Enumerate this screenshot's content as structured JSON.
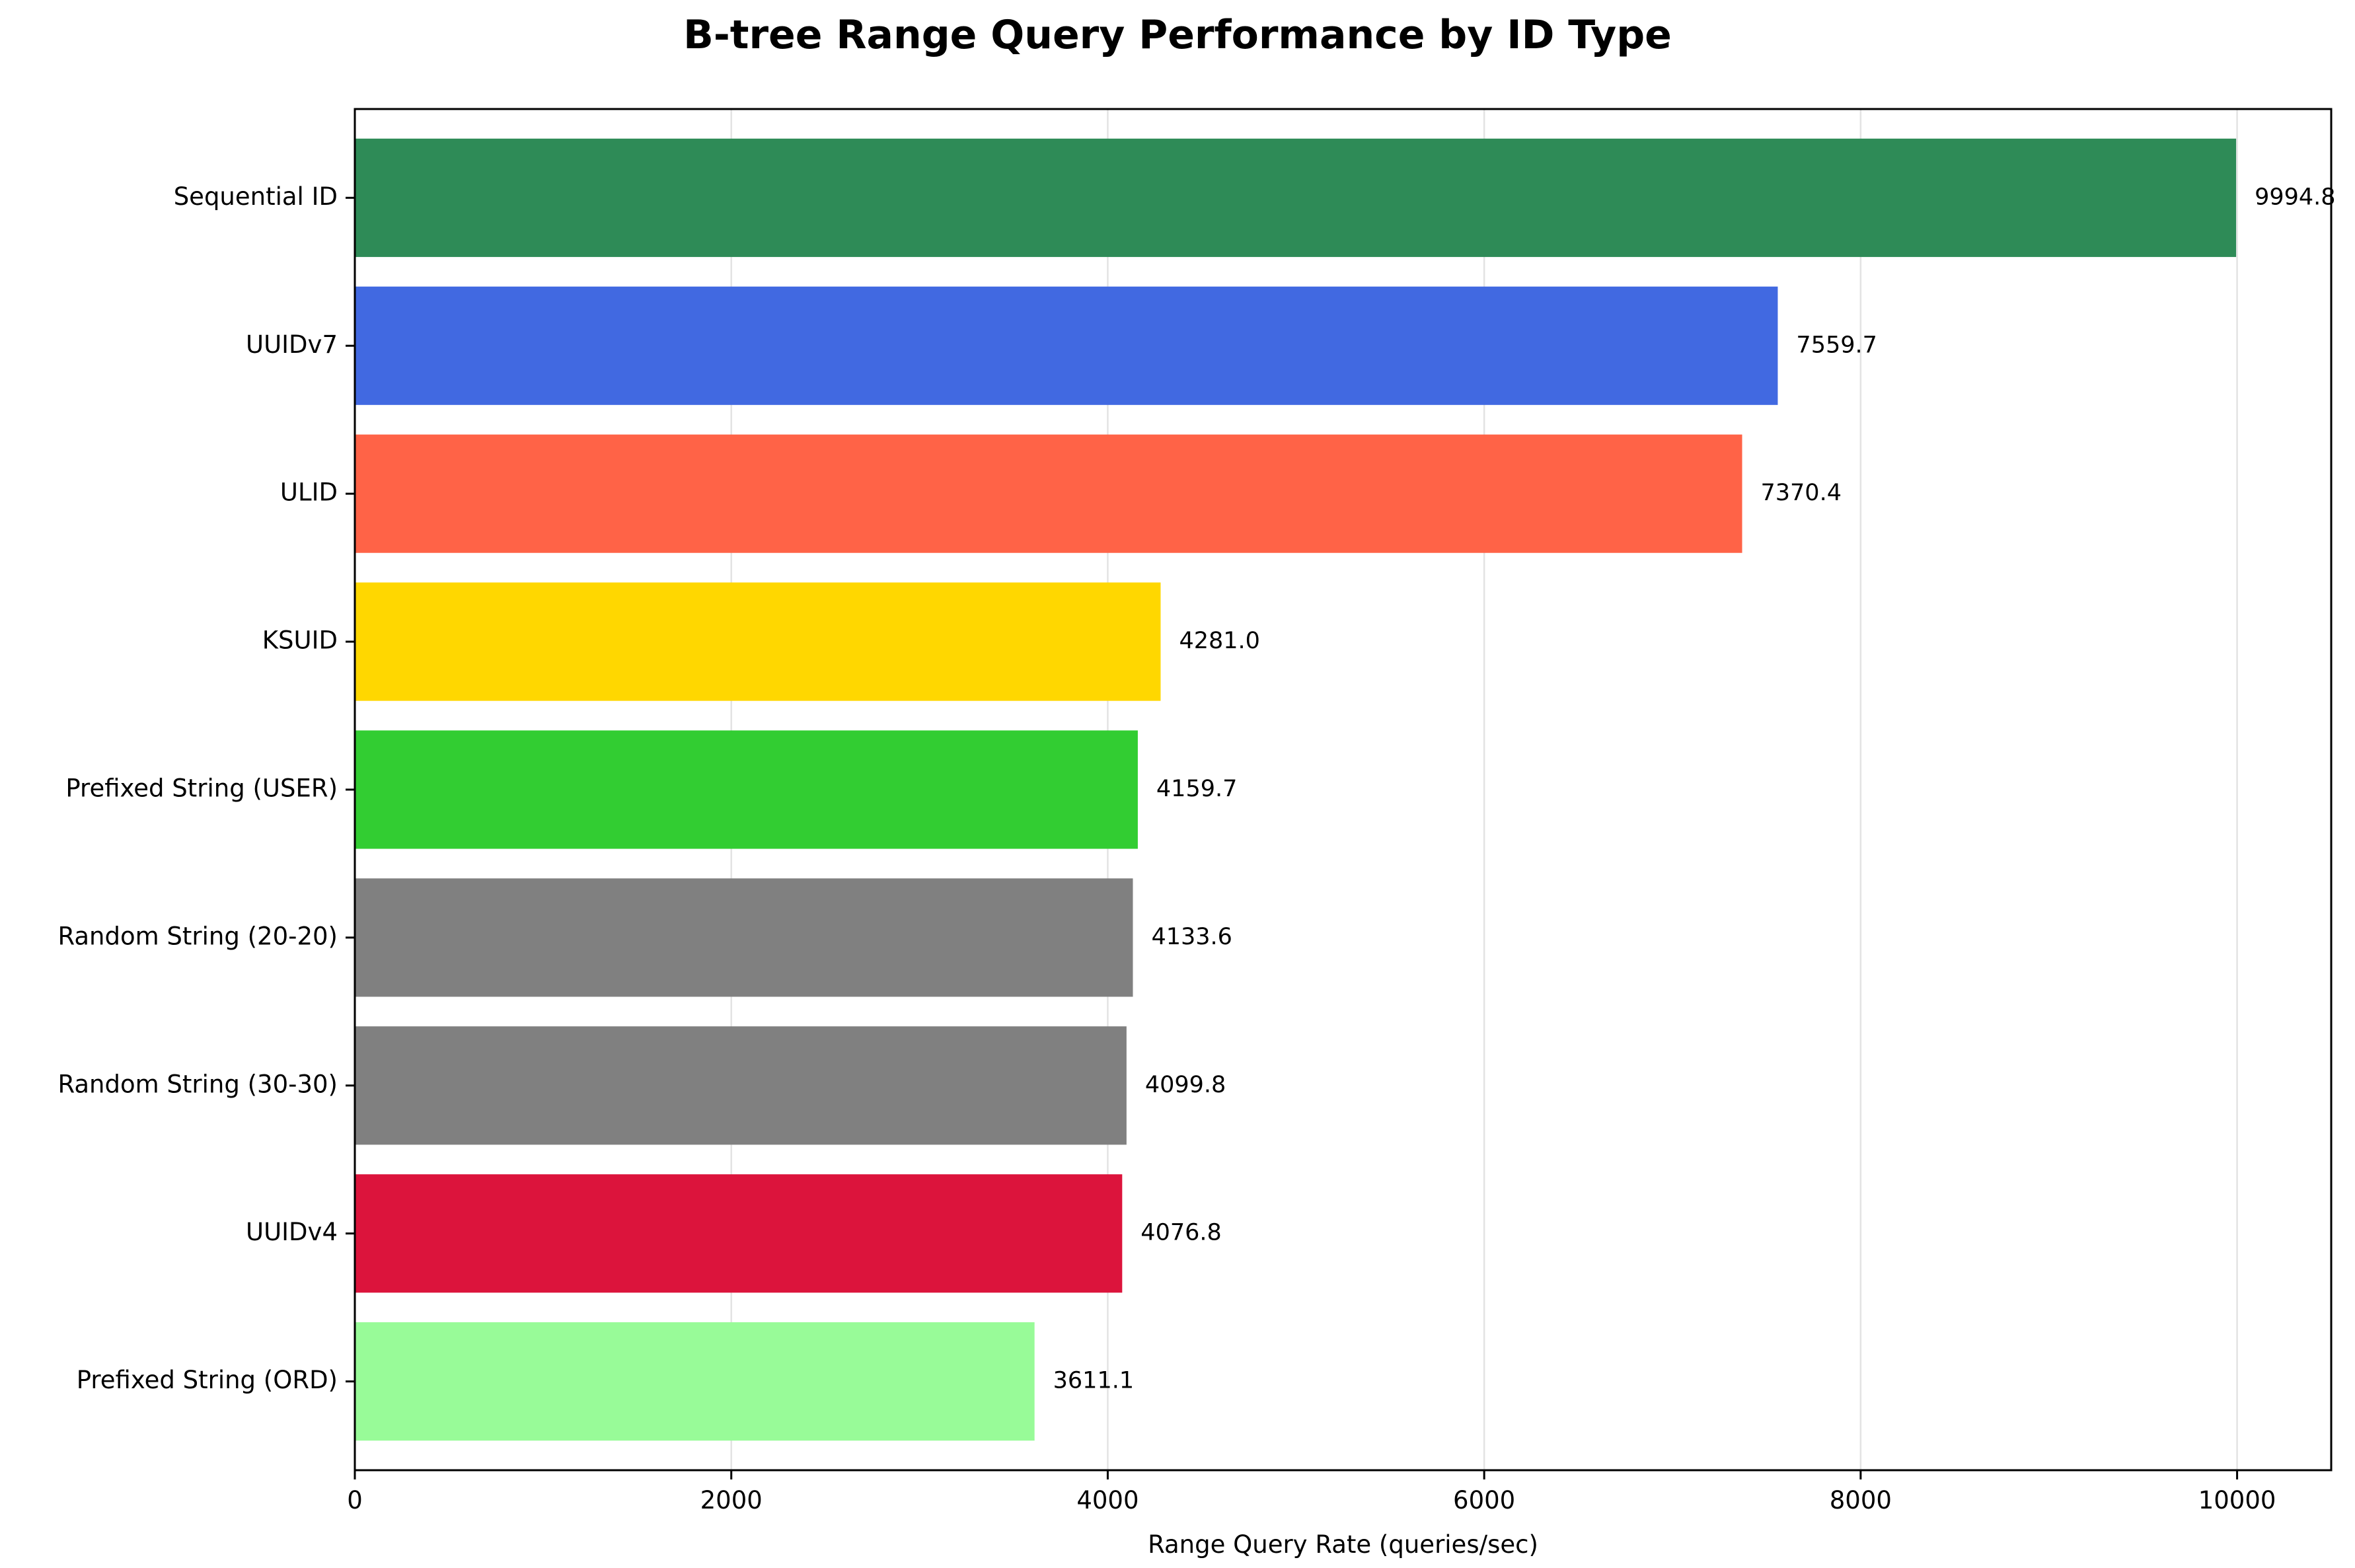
{
  "chart_data": {
    "type": "bar",
    "orientation": "horizontal",
    "title": "B-tree Range Query Performance by ID Type",
    "xlabel": "Range Query Rate (queries/sec)",
    "ylabel": "",
    "categories": [
      "Sequential ID",
      "UUIDv7",
      "ULID",
      "KSUID",
      "Prefixed String (USER)",
      "Random String (20-20)",
      "Random String (30-30)",
      "UUIDv4",
      "Prefixed String (ORD)"
    ],
    "values": [
      9994.8,
      7559.7,
      7370.4,
      4281.0,
      4159.7,
      4133.6,
      4099.8,
      4076.8,
      3611.1
    ],
    "value_labels": [
      "9994.8",
      "7559.7",
      "7370.4",
      "4281.0",
      "4159.7",
      "4133.6",
      "4099.8",
      "4076.8",
      "3611.1"
    ],
    "colors": [
      "#2e8b57",
      "#4169e1",
      "#ff6347",
      "#ffd700",
      "#32cd32",
      "#808080",
      "#808080",
      "#dc143c",
      "#98fb98"
    ],
    "xlim": [
      0,
      10500
    ],
    "xticks": [
      0,
      2000,
      4000,
      6000,
      8000,
      10000
    ],
    "xtick_labels": [
      "0",
      "2000",
      "4000",
      "6000",
      "8000",
      "10000"
    ],
    "grid": true,
    "grid_axis": "x",
    "legend": false
  }
}
